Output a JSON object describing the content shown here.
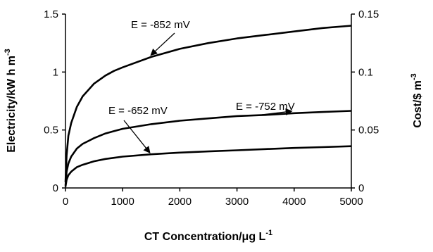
{
  "chart_data": {
    "type": "line",
    "title": "",
    "xlabel": "CT Concentration/μg L",
    "xlabel_sup": "-1",
    "ylabel": "Electricity/kW h m",
    "ylabel_sup": "-3",
    "y2label": "Cost/$ m",
    "y2label_sup": "-3",
    "xlim": [
      0,
      5000
    ],
    "ylim": [
      0,
      1.5
    ],
    "y2lim": [
      0,
      0.15
    ],
    "xticks": [
      "0",
      "1000",
      "2000",
      "3000",
      "4000",
      "5000"
    ],
    "yticks": [
      "0",
      "0.5",
      "1",
      "1.5"
    ],
    "y2ticks": [
      "0",
      "0.05",
      "0.1",
      "0.15"
    ],
    "grid": false,
    "legend": "none",
    "x": [
      0,
      20,
      50,
      100,
      200,
      300,
      500,
      700,
      850,
      1000,
      1500,
      2000,
      2500,
      3000,
      3500,
      4000,
      4500,
      5000
    ],
    "series": [
      {
        "name": "",
        "color": "#000000",
        "values": [
          0.05,
          0.28,
          0.45,
          0.56,
          0.7,
          0.79,
          0.9,
          0.97,
          1.01,
          1.04,
          1.13,
          1.2,
          1.25,
          1.29,
          1.32,
          1.35,
          1.38,
          1.4
        ]
      },
      {
        "name": "",
        "color": "#000000",
        "values": [
          0.02,
          0.14,
          0.21,
          0.27,
          0.34,
          0.38,
          0.43,
          0.47,
          0.49,
          0.51,
          0.55,
          0.58,
          0.6,
          0.62,
          0.63,
          0.645,
          0.655,
          0.665
        ]
      },
      {
        "name": "",
        "color": "#000000",
        "values": [
          0.01,
          0.07,
          0.11,
          0.14,
          0.18,
          0.2,
          0.23,
          0.25,
          0.26,
          0.27,
          0.29,
          0.305,
          0.315,
          0.325,
          0.335,
          0.345,
          0.352,
          0.36
        ]
      }
    ],
    "annotations": [
      {
        "text": "E = -852 mV",
        "series": 0,
        "x": 1500
      },
      {
        "text": "E = -752 mV",
        "series": 1,
        "x": 3950
      },
      {
        "text": "E = -652 mV",
        "series": 2,
        "x": 1470
      }
    ]
  }
}
